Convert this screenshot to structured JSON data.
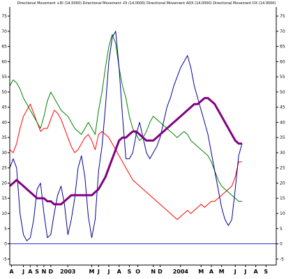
{
  "chart_data": {
    "type": "line",
    "title": "Directional Movement +DI (14.0000) Directional Movement -DI (14.0000) Directional Movement ADX (14.0000) Directional Movement DX (14.0000)",
    "xlabel": "",
    "ylabel": "",
    "ylim": [
      -7,
      78
    ],
    "grid": false,
    "legend": "none",
    "ref_line": 0,
    "yticks": [
      -5,
      0,
      5,
      10,
      15,
      20,
      25,
      30,
      35,
      40,
      45,
      50,
      55,
      60,
      65,
      70,
      75
    ],
    "x_ticks": [
      {
        "label": "A",
        "x": 0.5
      },
      {
        "label": "J",
        "x": 4
      },
      {
        "label": "A",
        "x": 6
      },
      {
        "label": "S",
        "x": 8
      },
      {
        "label": "N",
        "x": 10
      },
      {
        "label": "D",
        "x": 12
      },
      {
        "label": "2003",
        "x": 17
      },
      {
        "label": "M",
        "x": 24
      },
      {
        "label": "J",
        "x": 26
      },
      {
        "label": "J",
        "x": 29
      },
      {
        "label": "A",
        "x": 32
      },
      {
        "label": "S",
        "x": 35
      },
      {
        "label": "O",
        "x": 37.5
      },
      {
        "label": "N",
        "x": 42
      },
      {
        "label": "D",
        "x": 44
      },
      {
        "label": "2004",
        "x": 50
      },
      {
        "label": "M",
        "x": 56
      },
      {
        "label": "A",
        "x": 59
      },
      {
        "label": "M",
        "x": 62
      },
      {
        "label": "J",
        "x": 66
      },
      {
        "label": "J",
        "x": 69
      },
      {
        "label": "A",
        "x": 72
      },
      {
        "label": "S",
        "x": 75
      }
    ],
    "x_max": 78,
    "series": [
      {
        "color": "#ff0000",
        "width": 1,
        "x": [
          0,
          1,
          2,
          3,
          4,
          5,
          6,
          7,
          8,
          9,
          10,
          11,
          12,
          13,
          14,
          15,
          16,
          17,
          18,
          19,
          20,
          21,
          22,
          23,
          24,
          25,
          26,
          27,
          28,
          29,
          30,
          31,
          32,
          33,
          34,
          35,
          36,
          37,
          38,
          39,
          40,
          41,
          42,
          43,
          44,
          45,
          46,
          47,
          48,
          49,
          50,
          51,
          52,
          53,
          54,
          55,
          56,
          57,
          58,
          59,
          60,
          61,
          62,
          63,
          64,
          65,
          66,
          67,
          68
        ],
        "values": [
          31,
          30,
          33,
          38,
          42,
          44,
          46,
          43,
          40,
          37,
          38,
          38,
          41,
          44,
          43,
          41,
          38,
          35,
          32,
          30,
          31,
          33,
          35,
          36,
          34,
          31,
          36,
          37,
          36,
          35,
          33,
          31,
          29,
          27,
          25,
          23,
          21,
          20,
          19,
          18,
          17,
          16,
          15,
          14,
          13,
          12,
          11,
          10,
          9,
          8,
          9,
          10,
          11,
          10,
          11,
          12,
          13,
          12,
          13,
          14,
          14,
          15,
          16,
          17,
          18,
          19,
          22,
          27,
          27
        ]
      },
      {
        "color": "#008000",
        "width": 1,
        "x": [
          0,
          1,
          2,
          3,
          4,
          5,
          6,
          7,
          8,
          9,
          10,
          11,
          12,
          13,
          14,
          15,
          16,
          17,
          18,
          19,
          20,
          21,
          22,
          23,
          24,
          25,
          26,
          27,
          28,
          29,
          30,
          31,
          32,
          33,
          34,
          35,
          36,
          37,
          38,
          39,
          40,
          41,
          42,
          43,
          44,
          45,
          46,
          47,
          48,
          49,
          50,
          51,
          52,
          53,
          54,
          55,
          56,
          57,
          58,
          59,
          60,
          61,
          62,
          63,
          64,
          65,
          66,
          67,
          68
        ],
        "values": [
          52,
          54,
          53,
          51,
          48,
          46,
          44,
          42,
          40,
          38,
          42,
          47,
          50,
          48,
          46,
          44,
          43,
          42,
          40,
          38,
          37,
          36,
          38,
          40,
          38,
          36,
          44,
          50,
          58,
          65,
          69,
          66,
          58,
          52,
          48,
          42,
          38,
          36,
          34,
          35,
          37,
          40,
          42,
          41,
          40,
          39,
          38,
          37,
          36,
          35,
          36,
          37,
          36,
          34,
          33,
          32,
          31,
          30,
          29,
          27,
          24,
          21,
          19,
          18,
          17,
          16,
          15,
          14,
          14
        ]
      },
      {
        "color": "#000099",
        "width": 1,
        "x": [
          0,
          1,
          2,
          3,
          4,
          5,
          6,
          7,
          8,
          9,
          10,
          11,
          12,
          13,
          14,
          15,
          16,
          17,
          18,
          19,
          20,
          21,
          22,
          23,
          24,
          25,
          26,
          27,
          28,
          29,
          30,
          31,
          32,
          33,
          34,
          35,
          36,
          37,
          38,
          39,
          40,
          41,
          42,
          43,
          44,
          45,
          46,
          47,
          48,
          49,
          50,
          51,
          52,
          53,
          54,
          55,
          56,
          57,
          58,
          59,
          60,
          61,
          62,
          63,
          64,
          65,
          66,
          67,
          68
        ],
        "values": [
          25,
          28,
          25,
          10,
          3,
          1,
          2,
          8,
          18,
          20,
          10,
          2,
          3,
          10,
          16,
          19,
          13,
          3,
          8,
          15,
          25,
          29,
          22,
          9,
          2,
          8,
          24,
          32,
          45,
          60,
          68,
          70,
          58,
          42,
          28,
          28,
          30,
          36,
          40,
          35,
          30,
          28,
          30,
          32,
          35,
          40,
          45,
          48,
          52,
          55,
          58,
          60,
          62,
          58,
          52,
          48,
          44,
          40,
          36,
          30,
          24,
          18,
          12,
          8,
          6,
          8,
          18,
          29,
          33
        ]
      },
      {
        "color": "#800080",
        "width": 3,
        "x": [
          0,
          1,
          2,
          3,
          4,
          5,
          6,
          7,
          8,
          9,
          10,
          11,
          12,
          13,
          14,
          15,
          16,
          17,
          18,
          19,
          20,
          21,
          22,
          23,
          24,
          25,
          26,
          27,
          28,
          29,
          30,
          31,
          32,
          33,
          34,
          35,
          36,
          37,
          38,
          39,
          40,
          41,
          42,
          43,
          44,
          45,
          46,
          47,
          48,
          49,
          50,
          51,
          52,
          53,
          54,
          55,
          56,
          57,
          58,
          59,
          60,
          61,
          62,
          63,
          64,
          65,
          66,
          67,
          68
        ],
        "values": [
          19,
          20,
          21,
          20,
          19,
          18,
          17,
          16,
          15,
          15,
          15,
          14,
          14,
          13,
          13,
          13,
          14,
          15,
          16,
          16,
          16,
          16,
          16,
          16,
          16,
          17,
          18,
          20,
          22,
          25,
          28,
          31,
          34,
          35,
          35,
          36,
          37,
          37,
          36,
          35,
          34,
          34,
          34,
          35,
          36,
          37,
          38,
          39,
          40,
          41,
          42,
          43,
          44,
          45,
          46,
          46,
          47,
          48,
          48,
          47,
          46,
          44,
          42,
          40,
          38,
          36,
          34,
          33,
          33
        ]
      }
    ]
  }
}
